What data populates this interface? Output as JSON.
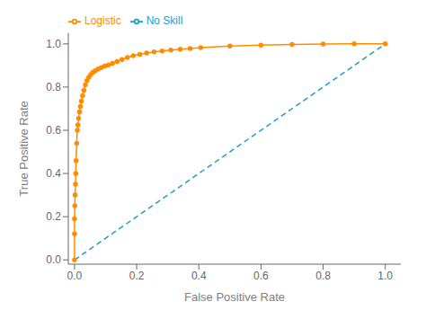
{
  "chart_data": {
    "type": "line",
    "xlabel": "False Positive Rate",
    "ylabel": "True Positive Rate",
    "xlim": [
      -0.02,
      1.05
    ],
    "ylim": [
      -0.02,
      1.05
    ],
    "xticks": [
      {
        "value": 0,
        "label": "0.0"
      },
      0.2,
      0.4,
      0.6,
      0.8,
      {
        "value": 1,
        "label": "1.0"
      }
    ],
    "yticks": [
      {
        "value": 0,
        "label": "0.0"
      },
      0.2,
      0.4,
      0.6,
      0.8,
      {
        "value": 1,
        "label": "1.0"
      }
    ],
    "grid": false,
    "legend": "upper left",
    "series": [
      {
        "name": "No Skill",
        "color": "#1f9ebd",
        "line_style": "dashed",
        "x": [
          0,
          1
        ],
        "values": [
          0,
          1
        ]
      },
      {
        "name": "Logistic",
        "color": "#ff8c00",
        "line_style": "solid",
        "marker": "circle",
        "x": [
          0.0,
          0.0,
          0.0,
          0.001,
          0.002,
          0.003,
          0.004,
          0.005,
          0.007,
          0.009,
          0.011,
          0.013,
          0.016,
          0.019,
          0.022,
          0.026,
          0.03,
          0.035,
          0.04,
          0.046,
          0.052,
          0.059,
          0.067,
          0.076,
          0.086,
          0.097,
          0.109,
          0.122,
          0.137,
          0.153,
          0.17,
          0.189,
          0.21,
          0.232,
          0.256,
          0.282,
          0.31,
          0.34,
          0.372,
          0.406,
          0.5,
          0.6,
          0.7,
          0.8,
          0.9,
          1.0
        ],
        "values": [
          0.0,
          0.12,
          0.19,
          0.25,
          0.3,
          0.35,
          0.4,
          0.46,
          0.54,
          0.6,
          0.625,
          0.655,
          0.685,
          0.71,
          0.735,
          0.76,
          0.785,
          0.81,
          0.83,
          0.845,
          0.858,
          0.868,
          0.876,
          0.884,
          0.89,
          0.897,
          0.903,
          0.91,
          0.918,
          0.928,
          0.937,
          0.945,
          0.952,
          0.958,
          0.963,
          0.967,
          0.971,
          0.975,
          0.979,
          0.983,
          0.99,
          0.994,
          0.997,
          0.999,
          1.0,
          1.0
        ]
      }
    ]
  }
}
